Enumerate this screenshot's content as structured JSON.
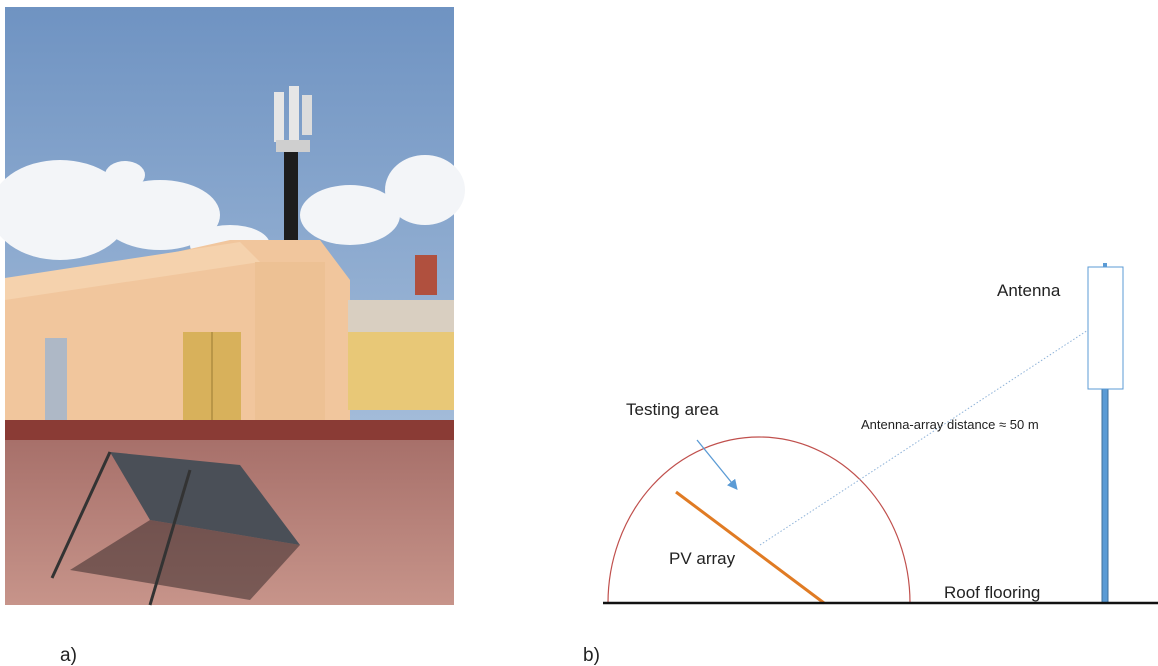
{
  "panel_a": {
    "label": "a)"
  },
  "panel_b": {
    "label": "b)",
    "antenna": "Antenna",
    "testing_area": "Testing area",
    "distance": "Antenna-array distance ≈ 50 m",
    "pv_array": "PV array",
    "roof": "Roof flooring"
  }
}
